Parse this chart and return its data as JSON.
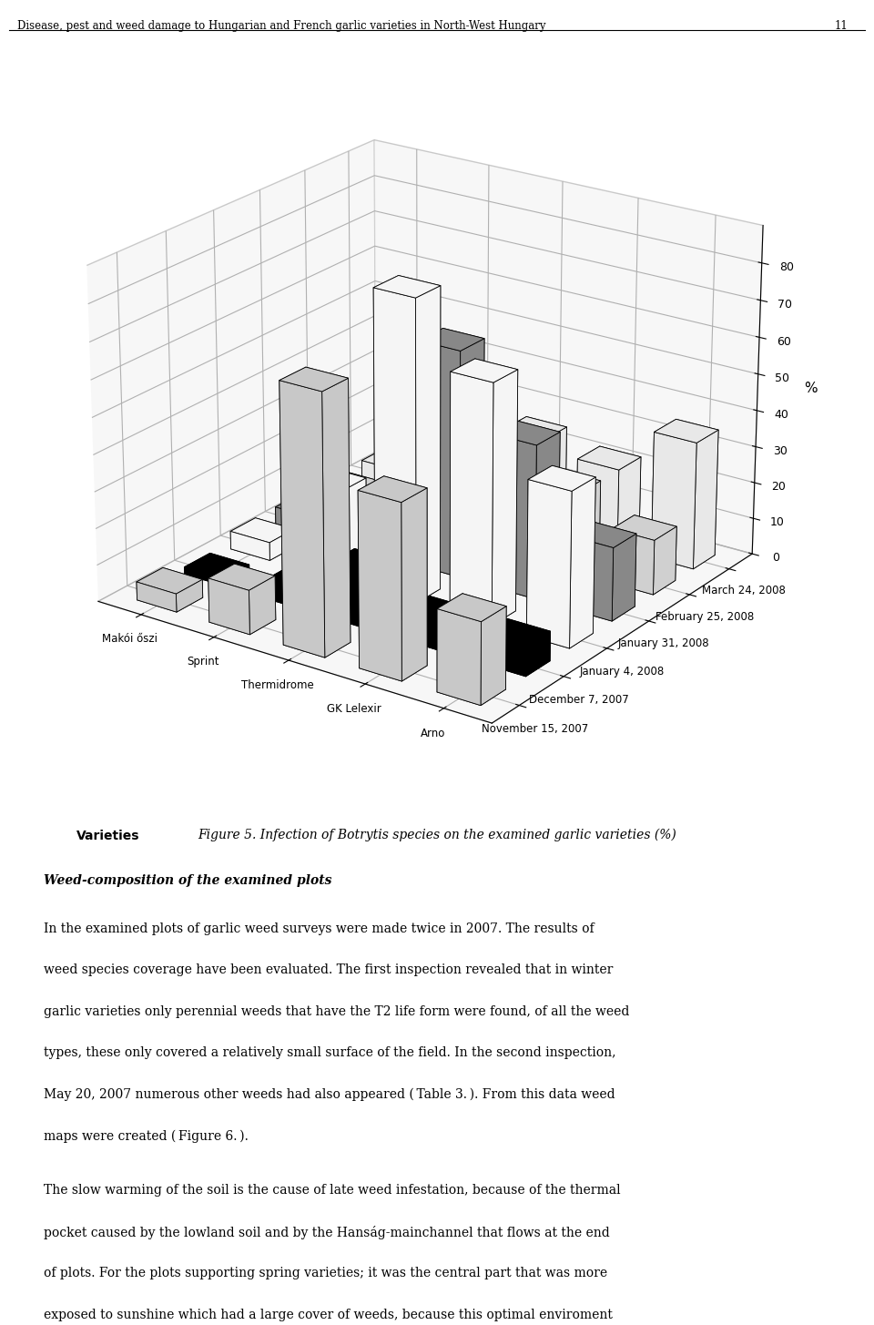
{
  "title_header": "Disease, pest and weed damage to Hungarian and French garlic varieties in North-West Hungary",
  "page_number": "11",
  "figure_caption_prefix": "Figure 5",
  "figure_caption_body": ". Infection of ",
  "figure_caption_italic": "Botrytis",
  "figure_caption_suffix": " species on the examined garlic varieties (%)",
  "varieties": [
    "Makói őszi",
    "Sprint",
    "Thermidrome",
    "GK Lelexir",
    "Arno"
  ],
  "dates": [
    "November 15, 2007",
    "December 7, 2007",
    "January 4, 2008",
    "January 31, 2008",
    "February 25, 2008",
    "March 24, 2008"
  ],
  "ylabel": "%",
  "xlabel": "Varieties",
  "zlim": [
    0,
    90
  ],
  "zticks": [
    0,
    10,
    20,
    30,
    40,
    50,
    60,
    70,
    80
  ],
  "bar_data": [
    [
      5,
      2,
      5,
      5,
      5,
      5
    ],
    [
      12,
      3,
      25,
      12,
      12,
      12
    ],
    [
      70,
      15,
      82,
      62,
      30,
      25
    ],
    [
      47,
      8,
      65,
      42,
      22,
      22
    ],
    [
      22,
      8,
      42,
      20,
      15,
      35
    ]
  ],
  "date_facecolors": [
    "#c8c8c8",
    "#000000",
    "#f5f5f5",
    "#888888",
    "#d0d0d0",
    "#e8e8e8"
  ],
  "date_edgecolors": [
    "#000000",
    "#000000",
    "#000000",
    "#000000",
    "#000000",
    "#000000"
  ],
  "elev": 22,
  "azim": -55,
  "bar_width": 0.55,
  "bar_depth": 0.55,
  "body_paragraph1": "In the examined plots of garlic weed surveys were made twice in 2007. The results of weed species coverage have been evaluated. The first inspection revealed that in winter garlic varieties only perennial weeds that have the T2 life form were found, of all the weed types, these only covered a relatively small surface of the field. In the second inspection, May 20, 2007 numerous other weeds had also appeared (",
  "body_p1_italic": "Table 3.",
  "body_p1_end": "). From this data weed maps were created (",
  "body_p1_italic2": "Figure 6.",
  "body_p1_end2": ").",
  "body_paragraph2": "The slow warming of the soil is the cause of late weed infestation, because of the thermal pocket caused by the lowland soil and by the Hanság-mainchannel that flows at the end of plots. For the plots supporting spring varieties; it was the central part that was more exposed to sunshine which had a large cover of weeds, because this optimal enviroment provided perfect conditions for the weed species seeds to germinate."
}
